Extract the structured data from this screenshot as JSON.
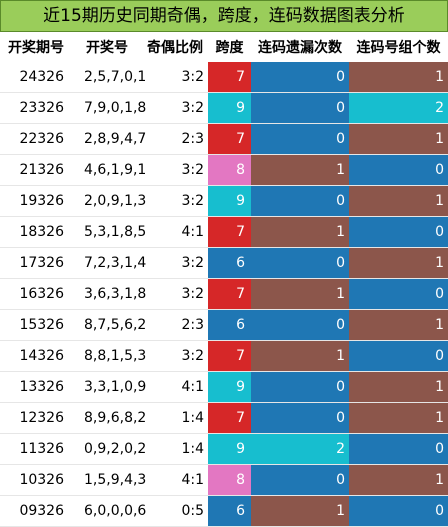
{
  "title": "近15期历史同期奇偶，跨度，连码数据图表分析",
  "headers": [
    "开奖期号",
    "开奖号",
    "奇偶比例",
    "跨度",
    "连码遗漏次数",
    "连码号组个数"
  ],
  "colors": {
    "span": {
      "6": "#1f77b4",
      "7": "#d62728",
      "8": "#e377c2",
      "9": "#17becf"
    },
    "omit": {
      "0": "#1f77b4",
      "1": "#8c564b",
      "2": "#17becf"
    },
    "group": {
      "0": "#1f77b4",
      "1": "#8c564b",
      "2": "#17becf"
    }
  },
  "rows": [
    {
      "period": "24326",
      "numbers": "2,5,7,0,1",
      "ratio": "3:2",
      "span": "7",
      "omit": "0",
      "group": "1"
    },
    {
      "period": "23326",
      "numbers": "7,9,0,1,8",
      "ratio": "3:2",
      "span": "9",
      "omit": "0",
      "group": "2"
    },
    {
      "period": "22326",
      "numbers": "2,8,9,4,7",
      "ratio": "2:3",
      "span": "7",
      "omit": "0",
      "group": "1"
    },
    {
      "period": "21326",
      "numbers": "4,6,1,9,1",
      "ratio": "3:2",
      "span": "8",
      "omit": "1",
      "group": "0"
    },
    {
      "period": "19326",
      "numbers": "2,0,9,1,3",
      "ratio": "3:2",
      "span": "9",
      "omit": "0",
      "group": "1"
    },
    {
      "period": "18326",
      "numbers": "5,3,1,8,5",
      "ratio": "4:1",
      "span": "7",
      "omit": "1",
      "group": "0"
    },
    {
      "period": "17326",
      "numbers": "7,2,3,1,4",
      "ratio": "3:2",
      "span": "6",
      "omit": "0",
      "group": "1"
    },
    {
      "period": "16326",
      "numbers": "3,6,3,1,8",
      "ratio": "3:2",
      "span": "7",
      "omit": "1",
      "group": "0"
    },
    {
      "period": "15326",
      "numbers": "8,7,5,6,2",
      "ratio": "2:3",
      "span": "6",
      "omit": "0",
      "group": "1"
    },
    {
      "period": "14326",
      "numbers": "8,8,1,5,3",
      "ratio": "3:2",
      "span": "7",
      "omit": "1",
      "group": "0"
    },
    {
      "period": "13326",
      "numbers": "3,3,1,0,9",
      "ratio": "4:1",
      "span": "9",
      "omit": "0",
      "group": "1"
    },
    {
      "period": "12326",
      "numbers": "8,9,6,8,2",
      "ratio": "1:4",
      "span": "7",
      "omit": "0",
      "group": "1"
    },
    {
      "period": "11326",
      "numbers": "0,9,2,0,2",
      "ratio": "1:4",
      "span": "9",
      "omit": "2",
      "group": "0"
    },
    {
      "period": "10326",
      "numbers": "1,5,9,4,3",
      "ratio": "4:1",
      "span": "8",
      "omit": "0",
      "group": "1"
    },
    {
      "period": "09326",
      "numbers": "6,0,0,0,6",
      "ratio": "0:5",
      "span": "6",
      "omit": "1",
      "group": "0"
    }
  ]
}
